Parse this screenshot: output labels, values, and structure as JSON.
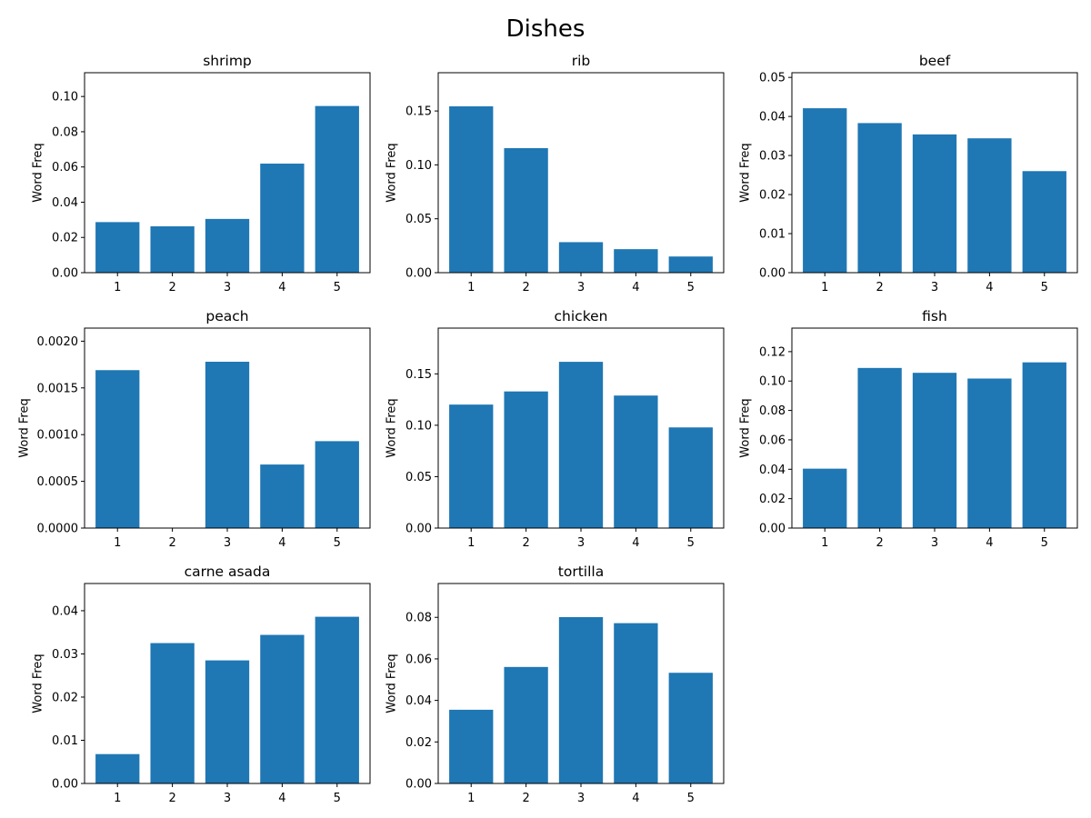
{
  "figure": {
    "title": "Dishes"
  },
  "colors": {
    "bar": "#1f77b4",
    "axis": "#000000",
    "background": "#ffffff"
  },
  "chart_data": [
    {
      "type": "bar",
      "title": "shrimp",
      "xlabel": "",
      "ylabel": "Word Freq",
      "categories": [
        "1",
        "2",
        "3",
        "4",
        "5"
      ],
      "values": [
        0.0287,
        0.0263,
        0.0305,
        0.0619,
        0.0946
      ],
      "ylim": [
        0,
        0.1135
      ],
      "yticks": [
        0.0,
        0.02,
        0.04,
        0.06,
        0.08,
        0.1
      ],
      "ytick_labels": [
        "0.00",
        "0.02",
        "0.04",
        "0.06",
        "0.08",
        "0.10"
      ]
    },
    {
      "type": "bar",
      "title": "rib",
      "xlabel": "",
      "ylabel": "Word Freq",
      "categories": [
        "1",
        "2",
        "3",
        "4",
        "5"
      ],
      "values": [
        0.1543,
        0.1155,
        0.0283,
        0.0218,
        0.015
      ],
      "ylim": [
        0,
        0.1855
      ],
      "yticks": [
        0.0,
        0.05,
        0.1,
        0.15
      ],
      "ytick_labels": [
        "0.00",
        "0.05",
        "0.10",
        "0.15"
      ]
    },
    {
      "type": "bar",
      "title": "beef",
      "xlabel": "",
      "ylabel": "Word Freq",
      "categories": [
        "1",
        "2",
        "3",
        "4",
        "5"
      ],
      "values": [
        0.0421,
        0.0383,
        0.0354,
        0.0344,
        0.026
      ],
      "ylim": [
        0,
        0.0512
      ],
      "yticks": [
        0.0,
        0.01,
        0.02,
        0.03,
        0.04,
        0.05
      ],
      "ytick_labels": [
        "0.00",
        "0.01",
        "0.02",
        "0.03",
        "0.04",
        "0.05"
      ]
    },
    {
      "type": "bar",
      "title": "peach",
      "xlabel": "",
      "ylabel": "Word Freq",
      "categories": [
        "1",
        "2",
        "3",
        "4",
        "5"
      ],
      "values": [
        0.00169,
        0.0,
        0.00178,
        0.00068,
        0.00093
      ],
      "ylim": [
        0,
        0.00214
      ],
      "yticks": [
        0.0,
        0.0005,
        0.001,
        0.0015,
        0.002
      ],
      "ytick_labels": [
        "0.0000",
        "0.0005",
        "0.0010",
        "0.0015",
        "0.0020"
      ]
    },
    {
      "type": "bar",
      "title": "chicken",
      "xlabel": "",
      "ylabel": "Word Freq",
      "categories": [
        "1",
        "2",
        "3",
        "4",
        "5"
      ],
      "values": [
        0.1201,
        0.1329,
        0.1617,
        0.1289,
        0.0979
      ],
      "ylim": [
        0,
        0.1945
      ],
      "yticks": [
        0.0,
        0.05,
        0.1,
        0.15
      ],
      "ytick_labels": [
        "0.00",
        "0.05",
        "0.10",
        "0.15"
      ]
    },
    {
      "type": "bar",
      "title": "fish",
      "xlabel": "",
      "ylabel": "Word Freq",
      "categories": [
        "1",
        "2",
        "3",
        "4",
        "5"
      ],
      "values": [
        0.0404,
        0.1089,
        0.1056,
        0.1017,
        0.1127
      ],
      "ylim": [
        0,
        0.136
      ],
      "yticks": [
        0.0,
        0.02,
        0.04,
        0.06,
        0.08,
        0.1,
        0.12
      ],
      "ytick_labels": [
        "0.00",
        "0.02",
        "0.04",
        "0.06",
        "0.08",
        "0.10",
        "0.12"
      ]
    },
    {
      "type": "bar",
      "title": "carne asada",
      "xlabel": "",
      "ylabel": "Word Freq",
      "categories": [
        "1",
        "2",
        "3",
        "4",
        "5"
      ],
      "values": [
        0.0068,
        0.0325,
        0.0285,
        0.0344,
        0.0386
      ],
      "ylim": [
        0,
        0.0463
      ],
      "yticks": [
        0.0,
        0.01,
        0.02,
        0.03,
        0.04
      ],
      "ytick_labels": [
        "0.00",
        "0.01",
        "0.02",
        "0.03",
        "0.04"
      ]
    },
    {
      "type": "bar",
      "title": "tortilla",
      "xlabel": "",
      "ylabel": "Word Freq",
      "categories": [
        "1",
        "2",
        "3",
        "4",
        "5"
      ],
      "values": [
        0.0355,
        0.0561,
        0.0801,
        0.0772,
        0.0533
      ],
      "ylim": [
        0,
        0.0963
      ],
      "yticks": [
        0.0,
        0.02,
        0.04,
        0.06,
        0.08
      ],
      "ytick_labels": [
        "0.00",
        "0.02",
        "0.04",
        "0.06",
        "0.08"
      ]
    }
  ]
}
